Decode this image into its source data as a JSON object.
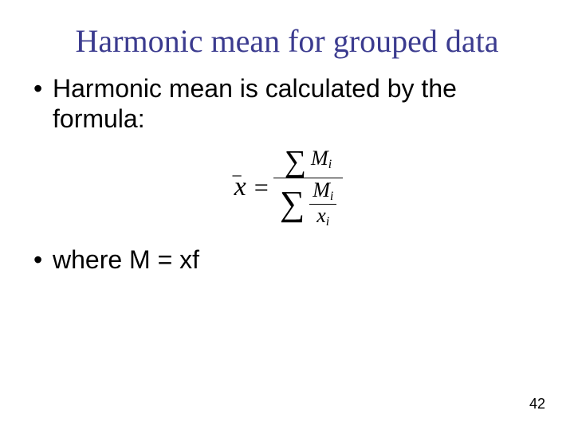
{
  "title": "Harmonic mean for grouped data",
  "bullets": {
    "b1": "Harmonic mean is calculated by the formula:",
    "b2": "where M = xf"
  },
  "formula": {
    "lhs_symbol": "x",
    "lhs_bar": "–",
    "equals": "=",
    "sum_glyph": "∑",
    "num_var": "M",
    "num_sub": "i",
    "den_inner_num_var": "M",
    "den_inner_num_sub": "i",
    "den_inner_den_var": "x",
    "den_inner_den_sub": "i"
  },
  "page_number": "42",
  "colors": {
    "title_color": "#3b3b8f",
    "body_color": "#000000",
    "background": "#ffffff"
  },
  "fonts": {
    "title_family": "Times New Roman",
    "title_size_pt": 40,
    "body_family": "Arial",
    "body_size_pt": 32
  }
}
